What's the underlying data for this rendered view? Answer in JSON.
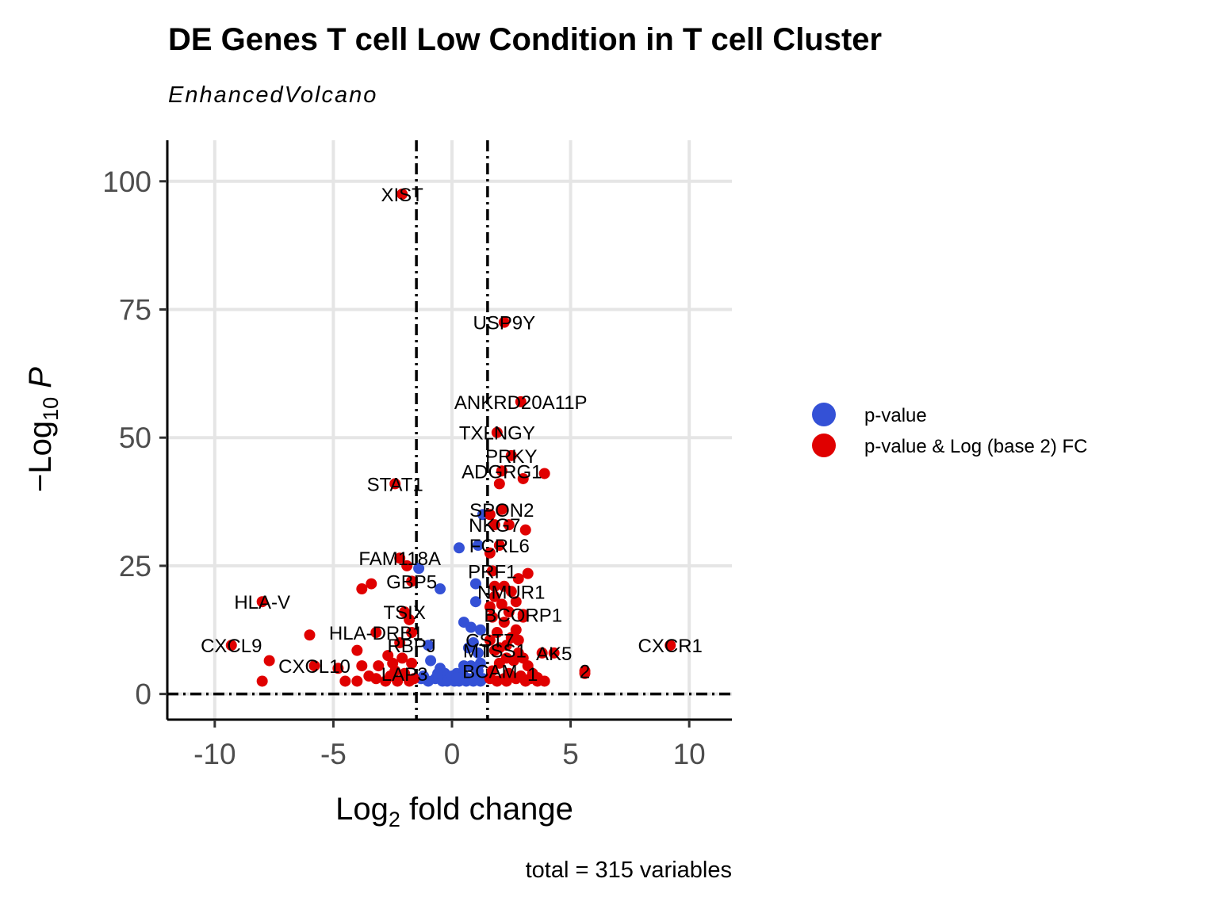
{
  "chart_data": {
    "type": "scatter",
    "title": "DE Genes T cell Low Condition in T cell Cluster",
    "subtitle": "EnhancedVolcano",
    "xlabel": "Log2 fold change",
    "ylabel": "-Log10 P",
    "caption": "total = 315 variables",
    "xlim": [
      -12,
      11.8
    ],
    "ylim": [
      -5,
      108
    ],
    "xticks": [
      -10,
      -5,
      0,
      5,
      10
    ],
    "xtick_labels": [
      "-10",
      "-5",
      "0",
      "5",
      "10"
    ],
    "yticks": [
      0,
      25,
      50,
      75,
      100
    ],
    "yticks_labels": [
      "0",
      "25",
      "50",
      "75",
      "100"
    ],
    "grid": true,
    "cutoffs": {
      "fc": [
        -1.5,
        1.5
      ],
      "p": 0
    },
    "legend_position": "right",
    "colors": {
      "pvalue": "#3451d6",
      "pvalue_fc": "#e00000"
    },
    "series": [
      {
        "name": "p-value",
        "points": [
          [
            1.3,
            35
          ],
          [
            0.3,
            28.5
          ],
          [
            1.1,
            29
          ],
          [
            -1.4,
            24.5
          ],
          [
            -0.5,
            20.5
          ],
          [
            1.0,
            21.5
          ],
          [
            1.0,
            18
          ],
          [
            -1.0,
            9.5
          ],
          [
            0.5,
            14
          ],
          [
            0.8,
            13
          ],
          [
            1.2,
            12.5
          ],
          [
            0.9,
            10
          ],
          [
            0.7,
            9
          ],
          [
            1.1,
            8
          ],
          [
            -0.9,
            6.5
          ],
          [
            -0.5,
            5
          ],
          [
            -0.3,
            4
          ],
          [
            0.2,
            4
          ],
          [
            0.5,
            3.5
          ],
          [
            1.0,
            3.5
          ],
          [
            1.3,
            3
          ],
          [
            -1.2,
            3.5
          ],
          [
            -0.7,
            3
          ],
          [
            -0.4,
            2.5
          ],
          [
            -0.1,
            3
          ],
          [
            0.3,
            2.5
          ],
          [
            0.6,
            2.5
          ],
          [
            0.9,
            2.5
          ],
          [
            1.2,
            2.5
          ],
          [
            -1.0,
            2.5
          ],
          [
            -0.2,
            2.5
          ],
          [
            0.1,
            2.5
          ],
          [
            0.4,
            3
          ],
          [
            0.7,
            3
          ],
          [
            1.1,
            4.5
          ],
          [
            0.8,
            5.5
          ],
          [
            1.2,
            6
          ],
          [
            0.5,
            5.5
          ],
          [
            -0.6,
            4
          ],
          [
            -1.3,
            3
          ],
          [
            0.0,
            3.5
          ],
          [
            0.2,
            3.2
          ]
        ]
      },
      {
        "name": "p-value & Log (base 2) FC",
        "points": [
          [
            -2.1,
            97.5
          ],
          [
            2.2,
            72.5
          ],
          [
            2.9,
            57
          ],
          [
            1.9,
            51
          ],
          [
            2.5,
            46.5
          ],
          [
            3.9,
            43
          ],
          [
            2.1,
            43.5
          ],
          [
            3.0,
            42
          ],
          [
            2.0,
            41
          ],
          [
            -2.4,
            41
          ],
          [
            2.1,
            36
          ],
          [
            1.6,
            35
          ],
          [
            2.4,
            33
          ],
          [
            3.1,
            32
          ],
          [
            1.8,
            33
          ],
          [
            2.0,
            29
          ],
          [
            -2.2,
            26.5
          ],
          [
            -1.9,
            25
          ],
          [
            3.2,
            23.5
          ],
          [
            1.7,
            24
          ],
          [
            -1.7,
            22
          ],
          [
            -3.4,
            21.5
          ],
          [
            -3.8,
            20.5
          ],
          [
            2.5,
            20
          ],
          [
            1.8,
            19
          ],
          [
            -8.0,
            18
          ],
          [
            -2.0,
            16
          ],
          [
            3.0,
            15.5
          ],
          [
            1.7,
            15
          ],
          [
            -1.8,
            14.5
          ],
          [
            2.2,
            14
          ],
          [
            -6.0,
            11.5
          ],
          [
            -3.2,
            12
          ],
          [
            2.5,
            11
          ],
          [
            2.8,
            10.5
          ],
          [
            -9.3,
            9.5
          ],
          [
            9.2,
            9.5
          ],
          [
            3.8,
            8
          ],
          [
            4.3,
            8
          ],
          [
            -4.0,
            8.5
          ],
          [
            1.8,
            8.5
          ],
          [
            2.8,
            8
          ],
          [
            -7.7,
            6.5
          ],
          [
            -5.8,
            5.5
          ],
          [
            -4.8,
            5
          ],
          [
            -3.8,
            5.5
          ],
          [
            -3.1,
            5.5
          ],
          [
            -2.5,
            6
          ],
          [
            -2.1,
            7
          ],
          [
            -1.7,
            6
          ],
          [
            2.0,
            6
          ],
          [
            2.6,
            6.5
          ],
          [
            3.2,
            5.5
          ],
          [
            5.6,
            4.5
          ],
          [
            5.6,
            4
          ],
          [
            -8.0,
            2.5
          ],
          [
            -4.5,
            2.5
          ],
          [
            -4.0,
            2.5
          ],
          [
            -3.2,
            3
          ],
          [
            -2.6,
            3.5
          ],
          [
            -2.0,
            4
          ],
          [
            1.6,
            3
          ],
          [
            2.2,
            3
          ],
          [
            2.7,
            3
          ],
          [
            3.1,
            2.5
          ],
          [
            3.6,
            2.5
          ],
          [
            3.9,
            2.5
          ],
          [
            -2.8,
            2.5
          ],
          [
            -1.6,
            3
          ],
          [
            1.7,
            4.5
          ],
          [
            2.4,
            4
          ],
          [
            3.4,
            4
          ],
          [
            2.9,
            3.5
          ],
          [
            -3.5,
            3.5
          ],
          [
            1.9,
            2.5
          ],
          [
            2.3,
            2.5
          ],
          [
            3.3,
            3
          ],
          [
            -2.3,
            2.5
          ],
          [
            -1.8,
            2.5
          ],
          [
            2.0,
            9
          ],
          [
            2.3,
            9.5
          ],
          [
            1.6,
            10.5
          ],
          [
            2.7,
            12.5
          ],
          [
            1.9,
            12
          ],
          [
            2.4,
            16
          ],
          [
            2.1,
            17.5
          ],
          [
            1.6,
            17
          ],
          [
            2.2,
            21
          ],
          [
            2.8,
            22.5
          ],
          [
            1.6,
            27.5
          ],
          [
            2.7,
            18
          ],
          [
            3.0,
            15
          ],
          [
            1.8,
            21
          ],
          [
            2.3,
            7
          ],
          [
            3.0,
            7
          ],
          [
            -2.7,
            7.5
          ],
          [
            -2.2,
            10
          ],
          [
            -1.7,
            12
          ],
          [
            -2.4,
            4.5
          ],
          [
            3.6,
            3.2
          ]
        ]
      }
    ],
    "annotations": [
      {
        "text": "XIST",
        "x": -2.1,
        "y": 97.5
      },
      {
        "text": "USP9Y",
        "x": 2.2,
        "y": 72.5
      },
      {
        "text": "ANKRD20A11P",
        "x": 2.9,
        "y": 57
      },
      {
        "text": "TXLNGY",
        "x": 1.9,
        "y": 51
      },
      {
        "text": "PRKY",
        "x": 2.5,
        "y": 46.5
      },
      {
        "text": "ADGRG1",
        "x": 2.1,
        "y": 43.5
      },
      {
        "text": "STAT1",
        "x": -2.4,
        "y": 41
      },
      {
        "text": "SPON2",
        "x": 2.1,
        "y": 36
      },
      {
        "text": "NKG7",
        "x": 1.8,
        "y": 33
      },
      {
        "text": "FCRL6",
        "x": 2.0,
        "y": 29
      },
      {
        "text": "FAM118A",
        "x": -2.2,
        "y": 26.5
      },
      {
        "text": "PRF1",
        "x": 1.7,
        "y": 24
      },
      {
        "text": "GBP5",
        "x": -1.7,
        "y": 22
      },
      {
        "text": "NMUR1",
        "x": 2.5,
        "y": 20
      },
      {
        "text": "HLA-V",
        "x": -8.0,
        "y": 18
      },
      {
        "text": "TSIX",
        "x": -2.0,
        "y": 16
      },
      {
        "text": "BCORP1",
        "x": 3.0,
        "y": 15.5
      },
      {
        "text": "HLA-DRB1",
        "x": -3.2,
        "y": 12
      },
      {
        "text": "CST7",
        "x": 1.6,
        "y": 10.5
      },
      {
        "text": "CXCL9",
        "x": -9.3,
        "y": 9.5
      },
      {
        "text": "CXCR1",
        "x": 9.2,
        "y": 9.5
      },
      {
        "text": "RBPJ",
        "x": -1.7,
        "y": 9.5
      },
      {
        "text": "AK5",
        "x": 4.3,
        "y": 8
      },
      {
        "text": "MTSS1",
        "x": 1.8,
        "y": 8.5
      },
      {
        "text": "CXCL10",
        "x": -5.8,
        "y": 5.5
      },
      {
        "text": "2",
        "x": 5.6,
        "y": 4.5
      },
      {
        "text": "LAP3",
        "x": -2.0,
        "y": 4
      },
      {
        "text": "BCAM",
        "x": 1.6,
        "y": 4.5
      },
      {
        "text": "1",
        "x": 3.4,
        "y": 4
      }
    ]
  }
}
